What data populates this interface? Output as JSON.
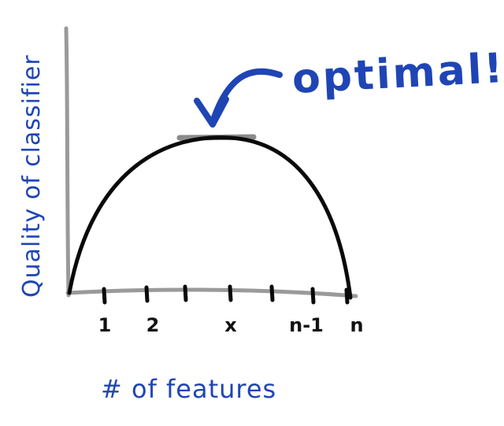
{
  "chart_data": {
    "type": "diagram",
    "ylabel": "Quality of classifier",
    "xlabel": "# of features",
    "x_ticks": [
      "1",
      "2",
      "",
      "x",
      "",
      "n-1",
      "n"
    ],
    "annotation": "optimal!",
    "colors": {
      "axis": "#9a9a9a",
      "curve": "#0a0a0a",
      "label": "#1f45b5",
      "optimal_marker": "#8a8a8a"
    }
  }
}
